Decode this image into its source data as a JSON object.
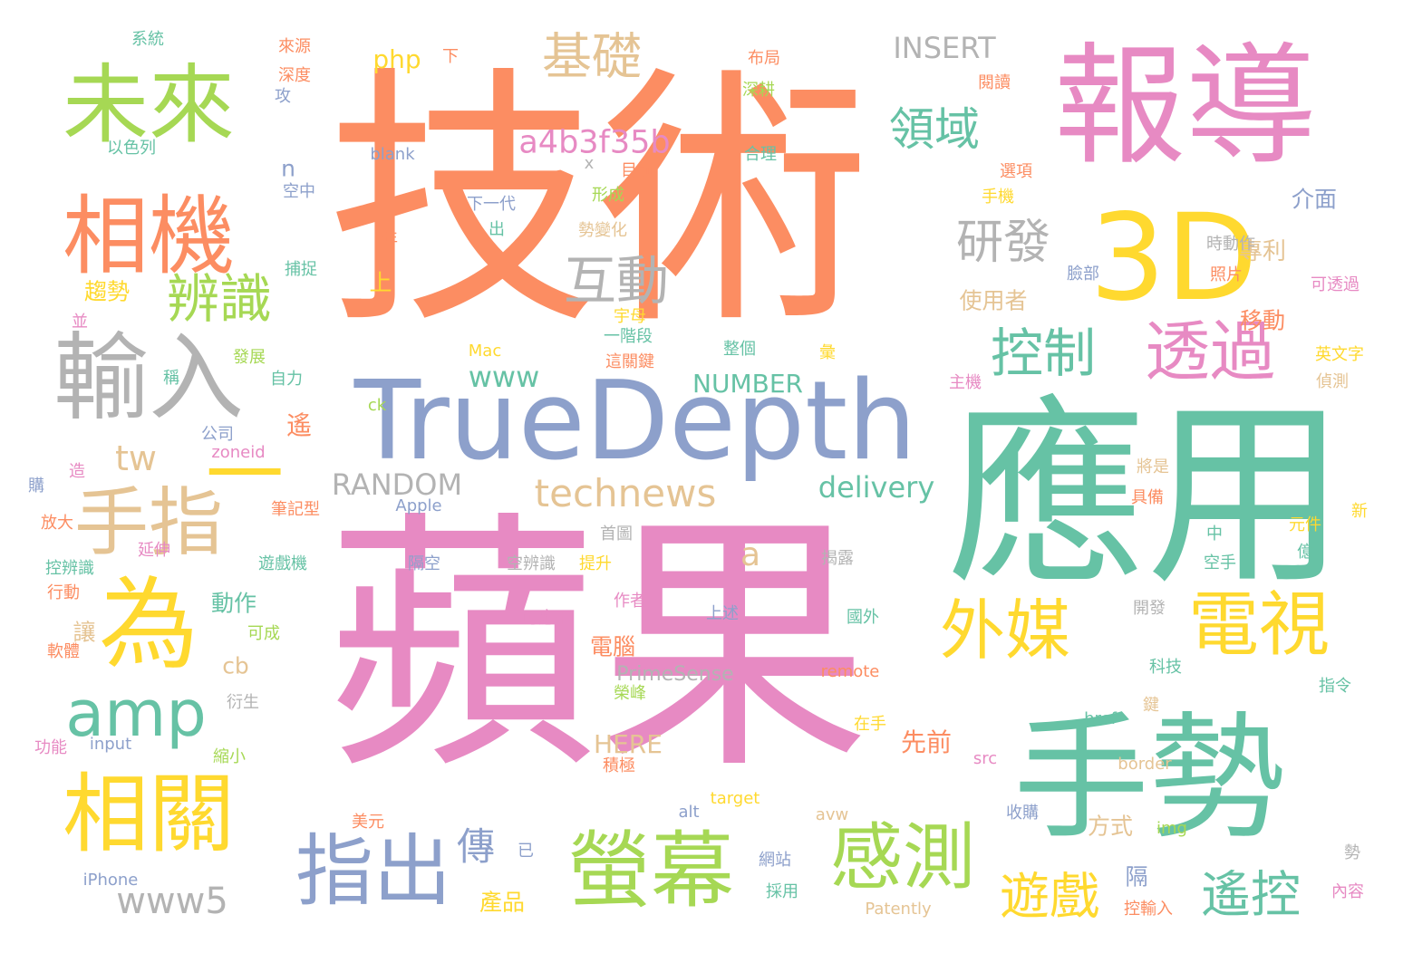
{
  "palette": {
    "orange": "#fc8d62",
    "pink": "#e78ac3",
    "green": "#66c2a5",
    "lime": "#a6d854",
    "yellow": "#ffd92f",
    "tan": "#e5c494",
    "gray": "#b3b3b3",
    "blue": "#8da0cb"
  },
  "words": [
    {
      "text": "技術",
      "color": "orange"
    },
    {
      "text": "蘋果",
      "color": "pink"
    },
    {
      "text": "應用",
      "color": "green"
    },
    {
      "text": "手勢",
      "color": "green"
    },
    {
      "text": "報導",
      "color": "pink"
    },
    {
      "text": "TrueDepth",
      "color": "blue"
    },
    {
      "text": "3D",
      "color": "yellow"
    },
    {
      "text": "輸入",
      "color": "gray"
    },
    {
      "text": "未來",
      "color": "lime"
    },
    {
      "text": "相機",
      "color": "orange"
    },
    {
      "text": "相關",
      "color": "yellow"
    },
    {
      "text": "為",
      "color": "yellow"
    },
    {
      "text": "螢幕",
      "color": "lime"
    },
    {
      "text": "一",
      "color": "yellow"
    },
    {
      "text": "手指",
      "color": "tan"
    },
    {
      "text": "指出",
      "color": "blue"
    },
    {
      "text": "感測",
      "color": "lime"
    },
    {
      "text": "電視",
      "color": "yellow"
    },
    {
      "text": "透過",
      "color": "pink"
    },
    {
      "text": "外媒",
      "color": "yellow"
    },
    {
      "text": "amp",
      "color": "green"
    },
    {
      "text": "互動",
      "color": "gray"
    },
    {
      "text": "辨識",
      "color": "lime"
    },
    {
      "text": "控制",
      "color": "green"
    },
    {
      "text": "遙控",
      "color": "green"
    },
    {
      "text": "遊戲",
      "color": "yellow"
    },
    {
      "text": "基礎",
      "color": "tan"
    },
    {
      "text": "研發",
      "color": "gray"
    },
    {
      "text": "領域",
      "color": "green"
    },
    {
      "text": "technews",
      "color": "tan"
    },
    {
      "text": "www5",
      "color": "gray"
    },
    {
      "text": "a4b3f35b",
      "color": "pink"
    },
    {
      "text": "INSERT",
      "color": "gray"
    },
    {
      "text": "RANDOM",
      "color": "gray"
    },
    {
      "text": "delivery",
      "color": "green"
    },
    {
      "text": "www",
      "color": "green"
    },
    {
      "text": "傳",
      "color": "blue"
    },
    {
      "text": "tw",
      "color": "tan"
    },
    {
      "text": "NUMBER",
      "color": "green"
    },
    {
      "text": "php",
      "color": "yellow"
    },
    {
      "text": "專利",
      "color": "tan"
    },
    {
      "text": "趨勢",
      "color": "yellow"
    },
    {
      "text": "使用者",
      "color": "tan"
    },
    {
      "text": "移動",
      "color": "orange"
    },
    {
      "text": "a",
      "color": "tan"
    },
    {
      "text": "PrimeSense",
      "color": "gray"
    },
    {
      "text": "HERE",
      "color": "tan"
    },
    {
      "text": "介面",
      "color": "blue"
    },
    {
      "text": "先前",
      "color": "orange"
    },
    {
      "text": "電腦",
      "color": "orange"
    },
    {
      "text": "動作",
      "color": "green"
    },
    {
      "text": "產品",
      "color": "yellow"
    },
    {
      "text": "方式",
      "color": "tan"
    },
    {
      "text": "cb",
      "color": "tan"
    },
    {
      "text": "遙",
      "color": "orange"
    },
    {
      "text": "讓",
      "color": "tan"
    },
    {
      "text": "隔",
      "color": "blue"
    },
    {
      "text": "上",
      "color": "yellow"
    },
    {
      "text": "n",
      "color": "blue"
    },
    {
      "text": "系統",
      "color": "green"
    },
    {
      "text": "來源",
      "color": "orange"
    },
    {
      "text": "深度",
      "color": "orange"
    },
    {
      "text": "攻",
      "color": "blue"
    },
    {
      "text": "以色列",
      "color": "green"
    },
    {
      "text": "下",
      "color": "orange"
    },
    {
      "text": "blank",
      "color": "blue"
    },
    {
      "text": "x",
      "color": "gray"
    },
    {
      "text": "目前",
      "color": "orange"
    },
    {
      "text": "合理",
      "color": "green"
    },
    {
      "text": "布局",
      "color": "orange"
    },
    {
      "text": "深耕",
      "color": "lime"
    },
    {
      "text": "閱讀",
      "color": "orange"
    },
    {
      "text": "選項",
      "color": "orange"
    },
    {
      "text": "手機",
      "color": "yellow"
    },
    {
      "text": "空中",
      "color": "blue"
    },
    {
      "text": "下一代",
      "color": "blue"
    },
    {
      "text": "形成",
      "color": "lime"
    },
    {
      "text": "出",
      "color": "green"
    },
    {
      "text": "勢變化",
      "color": "tan"
    },
    {
      "text": "年",
      "color": "orange"
    },
    {
      "text": "捕捉",
      "color": "green"
    },
    {
      "text": "時動作",
      "color": "gray"
    },
    {
      "text": "照片",
      "color": "orange"
    },
    {
      "text": "臉部",
      "color": "blue"
    },
    {
      "text": "可透過",
      "color": "pink"
    },
    {
      "text": "宇母",
      "color": "yellow"
    },
    {
      "text": "一階段",
      "color": "green"
    },
    {
      "text": "並",
      "color": "pink"
    },
    {
      "text": "Mac",
      "color": "yellow"
    },
    {
      "text": "整個",
      "color": "green"
    },
    {
      "text": "彙",
      "color": "yellow"
    },
    {
      "text": "英文字",
      "color": "yellow"
    },
    {
      "text": "發展",
      "color": "lime"
    },
    {
      "text": "稱",
      "color": "green"
    },
    {
      "text": "自力",
      "color": "green"
    },
    {
      "text": "這關鍵",
      "color": "orange"
    },
    {
      "text": "主機",
      "color": "pink"
    },
    {
      "text": "偵測",
      "color": "tan"
    },
    {
      "text": "公司",
      "color": "blue"
    },
    {
      "text": "ck",
      "color": "lime"
    },
    {
      "text": "zoneid",
      "color": "pink"
    },
    {
      "text": "造",
      "color": "pink"
    },
    {
      "text": "將是",
      "color": "tan"
    },
    {
      "text": "具備",
      "color": "orange"
    },
    {
      "text": "購",
      "color": "blue"
    },
    {
      "text": "筆記型",
      "color": "orange"
    },
    {
      "text": "Apple",
      "color": "blue"
    },
    {
      "text": "放大",
      "color": "orange"
    },
    {
      "text": "延伸",
      "color": "pink"
    },
    {
      "text": "首圖",
      "color": "gray"
    },
    {
      "text": "中",
      "color": "green"
    },
    {
      "text": "元件",
      "color": "yellow"
    },
    {
      "text": "新",
      "color": "yellow"
    },
    {
      "text": "控辨識",
      "color": "green"
    },
    {
      "text": "遊戲機",
      "color": "green"
    },
    {
      "text": "隔空",
      "color": "blue"
    },
    {
      "text": "空辨識",
      "color": "gray"
    },
    {
      "text": "提升",
      "color": "yellow"
    },
    {
      "text": "揭露",
      "color": "gray"
    },
    {
      "text": "空手",
      "color": "green"
    },
    {
      "text": "億",
      "color": "green"
    },
    {
      "text": "行動",
      "color": "orange"
    },
    {
      "text": "作者",
      "color": "pink"
    },
    {
      "text": "可成",
      "color": "lime"
    },
    {
      "text": "可應用",
      "color": "pink"
    },
    {
      "text": "上述",
      "color": "blue"
    },
    {
      "text": "國外",
      "color": "green"
    },
    {
      "text": "開發",
      "color": "gray"
    },
    {
      "text": "軟體",
      "color": "orange"
    },
    {
      "text": "衍生",
      "color": "gray"
    },
    {
      "text": "remote",
      "color": "orange"
    },
    {
      "text": "科技",
      "color": "green"
    },
    {
      "text": "榮峰",
      "color": "lime"
    },
    {
      "text": "指令",
      "color": "green"
    },
    {
      "text": "鍵",
      "color": "tan"
    },
    {
      "text": "功能",
      "color": "pink"
    },
    {
      "text": "input",
      "color": "blue"
    },
    {
      "text": "縮小",
      "color": "lime"
    },
    {
      "text": "在手",
      "color": "yellow"
    },
    {
      "text": "href",
      "color": "green"
    },
    {
      "text": "src",
      "color": "pink"
    },
    {
      "text": "border",
      "color": "tan"
    },
    {
      "text": "積極",
      "color": "orange"
    },
    {
      "text": "target",
      "color": "yellow"
    },
    {
      "text": "alt",
      "color": "blue"
    },
    {
      "text": "avw",
      "color": "tan"
    },
    {
      "text": "收購",
      "color": "blue"
    },
    {
      "text": "美元",
      "color": "orange"
    },
    {
      "text": "已",
      "color": "blue"
    },
    {
      "text": "網站",
      "color": "blue"
    },
    {
      "text": "img",
      "color": "lime"
    },
    {
      "text": "勢",
      "color": "gray"
    },
    {
      "text": "iPhone",
      "color": "blue"
    },
    {
      "text": "採用",
      "color": "green"
    },
    {
      "text": "Patently",
      "color": "tan"
    },
    {
      "text": "控輸入",
      "color": "orange"
    },
    {
      "text": "內容",
      "color": "pink"
    }
  ]
}
